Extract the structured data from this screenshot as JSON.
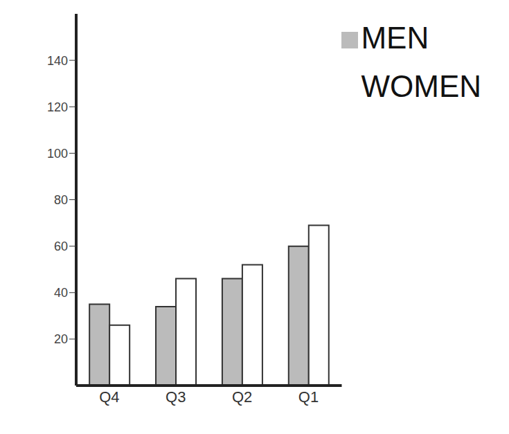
{
  "chart_data": {
    "type": "bar",
    "categories": [
      "Q4",
      "Q3",
      "Q2",
      "Q1"
    ],
    "series": [
      {
        "name": "MEN",
        "color": "#bbbbbb",
        "values": [
          35,
          34,
          46,
          60
        ]
      },
      {
        "name": "WOMEN",
        "color": "#ffffff",
        "values": [
          26,
          46,
          52,
          69
        ]
      }
    ],
    "ylim": [
      0,
      160
    ],
    "yticks": [
      20,
      40,
      60,
      80,
      100,
      120,
      140
    ],
    "grid": false,
    "legend": "upper right"
  }
}
